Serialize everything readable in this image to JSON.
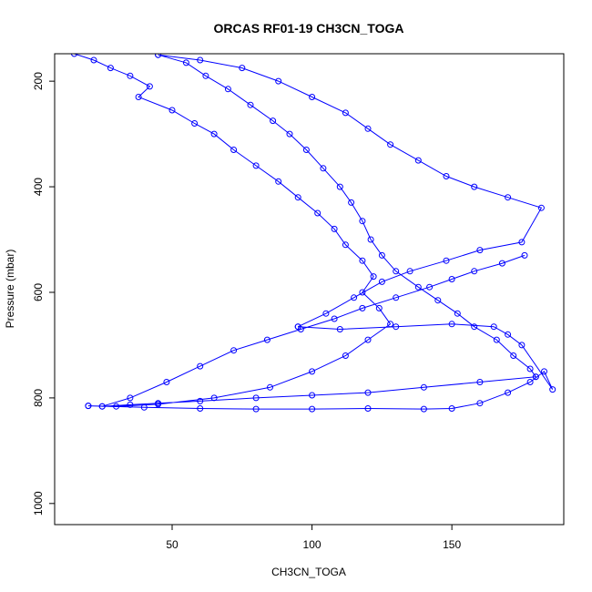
{
  "chart_data": {
    "type": "line",
    "title": "ORCAS RF01-19 CH3CN_TOGA",
    "xlabel": "CH3CN_TOGA",
    "ylabel": "Pressure (mbar)",
    "xlim": [
      8,
      190
    ],
    "ylim": [
      1040,
      148
    ],
    "y_reversed": true,
    "x_ticks": [
      50,
      100,
      150
    ],
    "y_ticks": [
      200,
      400,
      600,
      800,
      1000
    ],
    "grid": false,
    "legend": "none",
    "series_color": "#0000ff",
    "marker": "open-circle",
    "note_points": "representative sample of the dense flight-profile trace",
    "series": [
      {
        "points": [
          [
            15,
            148
          ],
          [
            22,
            160
          ],
          [
            28,
            175
          ],
          [
            35,
            190
          ],
          [
            42,
            210
          ],
          [
            38,
            230
          ],
          [
            50,
            255
          ],
          [
            58,
            280
          ],
          [
            65,
            300
          ],
          [
            72,
            330
          ],
          [
            80,
            360
          ],
          [
            88,
            390
          ],
          [
            95,
            420
          ],
          [
            102,
            450
          ],
          [
            108,
            480
          ],
          [
            112,
            510
          ],
          [
            118,
            540
          ],
          [
            122,
            570
          ],
          [
            118,
            600
          ],
          [
            124,
            630
          ],
          [
            128,
            660
          ],
          [
            120,
            690
          ],
          [
            112,
            720
          ],
          [
            100,
            750
          ],
          [
            85,
            780
          ],
          [
            65,
            800
          ],
          [
            45,
            812
          ],
          [
            30,
            816
          ],
          [
            20,
            815
          ],
          [
            20,
            815
          ],
          [
            40,
            818
          ],
          [
            60,
            820
          ],
          [
            80,
            821
          ],
          [
            100,
            821
          ],
          [
            120,
            820
          ],
          [
            140,
            821
          ],
          [
            150,
            820
          ],
          [
            160,
            810
          ],
          [
            170,
            790
          ],
          [
            178,
            770
          ],
          [
            183,
            750
          ],
          [
            186,
            784
          ],
          [
            175,
            700
          ],
          [
            170,
            680
          ],
          [
            165,
            665
          ],
          [
            150,
            660
          ],
          [
            130,
            665
          ],
          [
            110,
            670
          ],
          [
            95,
            665
          ],
          [
            95,
            665
          ],
          [
            105,
            640
          ],
          [
            115,
            610
          ],
          [
            125,
            580
          ],
          [
            135,
            560
          ],
          [
            148,
            540
          ],
          [
            160,
            520
          ],
          [
            175,
            505
          ],
          [
            182,
            440
          ],
          [
            170,
            420
          ],
          [
            158,
            400
          ],
          [
            148,
            380
          ],
          [
            138,
            350
          ],
          [
            128,
            320
          ],
          [
            120,
            290
          ],
          [
            112,
            260
          ],
          [
            100,
            230
          ],
          [
            88,
            200
          ],
          [
            75,
            175
          ],
          [
            60,
            160
          ],
          [
            45,
            150
          ],
          [
            45,
            150
          ],
          [
            55,
            165
          ],
          [
            62,
            190
          ],
          [
            70,
            215
          ],
          [
            78,
            245
          ],
          [
            86,
            275
          ],
          [
            92,
            300
          ],
          [
            98,
            330
          ],
          [
            104,
            365
          ],
          [
            110,
            400
          ],
          [
            114,
            430
          ],
          [
            118,
            465
          ],
          [
            121,
            500
          ],
          [
            125,
            530
          ],
          [
            130,
            560
          ],
          [
            138,
            590
          ],
          [
            145,
            615
          ],
          [
            152,
            640
          ],
          [
            158,
            665
          ],
          [
            166,
            690
          ],
          [
            172,
            720
          ],
          [
            178,
            745
          ],
          [
            180,
            760
          ],
          [
            180,
            760
          ],
          [
            160,
            770
          ],
          [
            140,
            780
          ],
          [
            120,
            790
          ],
          [
            100,
            795
          ],
          [
            80,
            800
          ],
          [
            60,
            806
          ],
          [
            45,
            810
          ],
          [
            35,
            813
          ],
          [
            25,
            816
          ],
          [
            25,
            816
          ],
          [
            35,
            800
          ],
          [
            48,
            770
          ],
          [
            60,
            740
          ],
          [
            72,
            710
          ],
          [
            84,
            690
          ],
          [
            96,
            670
          ],
          [
            108,
            650
          ],
          [
            118,
            630
          ],
          [
            130,
            610
          ],
          [
            142,
            590
          ],
          [
            150,
            575
          ],
          [
            158,
            560
          ],
          [
            168,
            545
          ],
          [
            176,
            530
          ]
        ]
      }
    ]
  }
}
